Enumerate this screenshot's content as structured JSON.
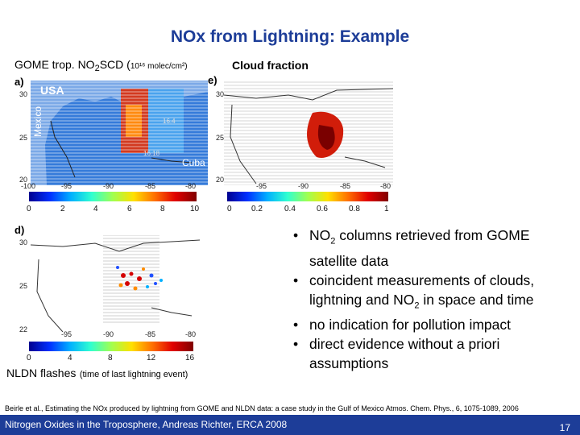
{
  "title": "NOx from Lightning: Example",
  "labels": {
    "gome_bold": "GOME",
    "gome_rest": " trop. NO",
    "gome_sub": "2",
    "gome_scd": "SCD (",
    "gome_units": "10¹⁶ molec/cm²)",
    "cloud": "Cloud fraction",
    "nldn_bold": "NLDN flashes",
    "nldn_rest": "(time of last lightning event)"
  },
  "panels": {
    "a": {
      "letter": "a)",
      "yticks": [
        "30",
        "25",
        "20"
      ],
      "xticks": [
        "-100",
        "-95",
        "-90",
        "-85",
        "-80"
      ],
      "cbticks": [
        "0",
        "2",
        "4",
        "6",
        "8",
        "10"
      ],
      "map_labels": [
        "USA",
        "Mexico",
        "Cuba"
      ],
      "overlay_labels": [
        "16.4",
        "16.18"
      ]
    },
    "e": {
      "letter": "e)",
      "yticks": [
        "30",
        "25",
        "20"
      ],
      "xticks": [
        "-95",
        "-90",
        "-85",
        "-80"
      ],
      "cbticks": [
        "0",
        "0.2",
        "0.4",
        "0.6",
        "0.8",
        "1"
      ]
    },
    "d": {
      "letter": "d)",
      "yticks": [
        "30",
        "25",
        "22"
      ],
      "xticks": [
        "-95",
        "-90",
        "-85",
        "-80"
      ],
      "cbticks": [
        "0",
        "4",
        "8",
        "12",
        "16"
      ]
    }
  },
  "bullets": [
    {
      "pre": "NO",
      "sub": "2",
      "post": " columns retrieved from GOME satellite data"
    },
    {
      "pre": "coincident measurements of clouds, lightning and NO",
      "sub": "2",
      "post": " in space and time"
    },
    {
      "pre": "no indication for pollution impact",
      "sub": "",
      "post": ""
    },
    {
      "pre": "direct evidence without a priori assumptions",
      "sub": "",
      "post": ""
    }
  ],
  "citation": "Beirle et al., Estimating the NOx produced by lightning from GOME and NLDN data: a case study in the Gulf of Mexico Atmos. Chem. Phys., 6, 1075-1089, 2006",
  "footer": "Nitrogen Oxides in the Troposphere, Andreas Richter, ERCA 2008",
  "page_number": "17",
  "colors": {
    "title": "#1d3d98",
    "footer_bg": "#1d3d98"
  }
}
